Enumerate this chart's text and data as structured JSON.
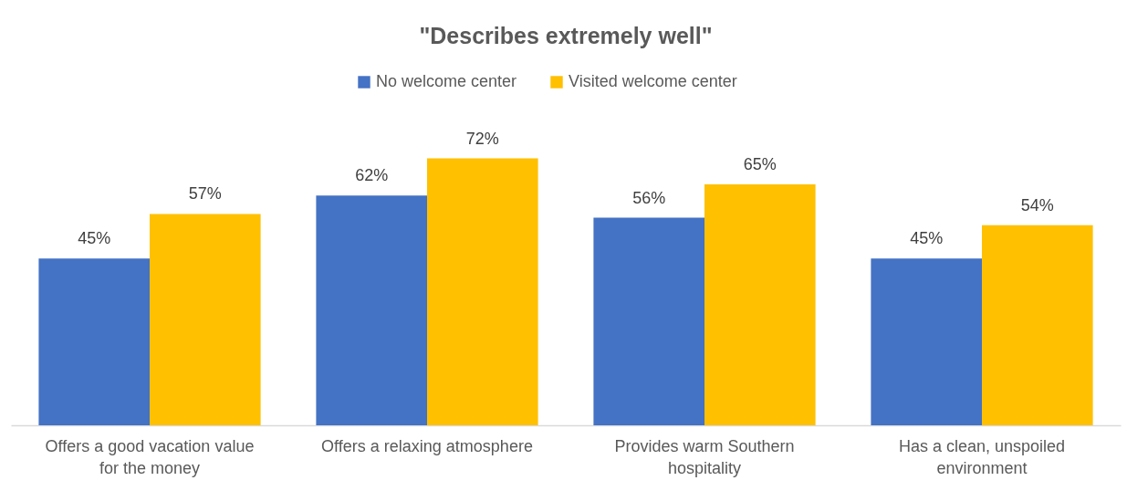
{
  "chart_data": {
    "type": "bar",
    "title": "\"Describes extremely well\"",
    "categories": [
      "Offers a good vacation value for the money",
      "Offers a relaxing atmosphere",
      "Provides warm Southern hospitality",
      "Has a clean, unspoiled environment"
    ],
    "series": [
      {
        "name": "No welcome center",
        "color": "#4472c4",
        "values": [
          45,
          62,
          56,
          45
        ],
        "value_labels": [
          "45%",
          "62%",
          "56%",
          "45%"
        ]
      },
      {
        "name": "Visited welcome center",
        "color": "#ffc000",
        "values": [
          57,
          72,
          65,
          54
        ],
        "value_labels": [
          "57%",
          "72%",
          "65%",
          "54%"
        ]
      }
    ],
    "legend": "top",
    "tick_labels": "x"
  }
}
